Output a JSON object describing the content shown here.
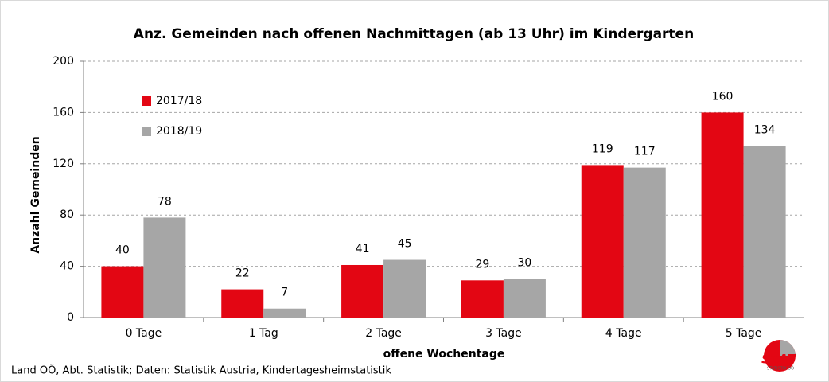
{
  "chart_data": {
    "type": "bar",
    "title": "Anz. Gemeinden nach offenen Nachmittagen (ab 13 Uhr) im Kindergarten",
    "x_label": "offene Wochentage",
    "y_label": "Anzahl Gemeinden",
    "source": "Land OÖ, Abt. Statistik; Daten: Statistik Austria, Kindertagesheimstatistik",
    "logo": {
      "text": "STAT",
      "subtext": "STATISTIK OÖ"
    },
    "categories": [
      "0 Tage",
      "1 Tag",
      "2 Tage",
      "3 Tage",
      "4 Tage",
      "5 Tage"
    ],
    "series": [
      {
        "name": "2017/18",
        "color": "#e30613",
        "values": [
          40,
          22,
          41,
          29,
          119,
          160
        ]
      },
      {
        "name": "2018/19",
        "color": "#a6a6a6",
        "values": [
          78,
          7,
          45,
          30,
          117,
          134
        ]
      }
    ],
    "ylim": [
      0,
      200
    ],
    "yticks": [
      0,
      40,
      80,
      120,
      160,
      200
    ],
    "grid": true,
    "legend": "top-left"
  }
}
